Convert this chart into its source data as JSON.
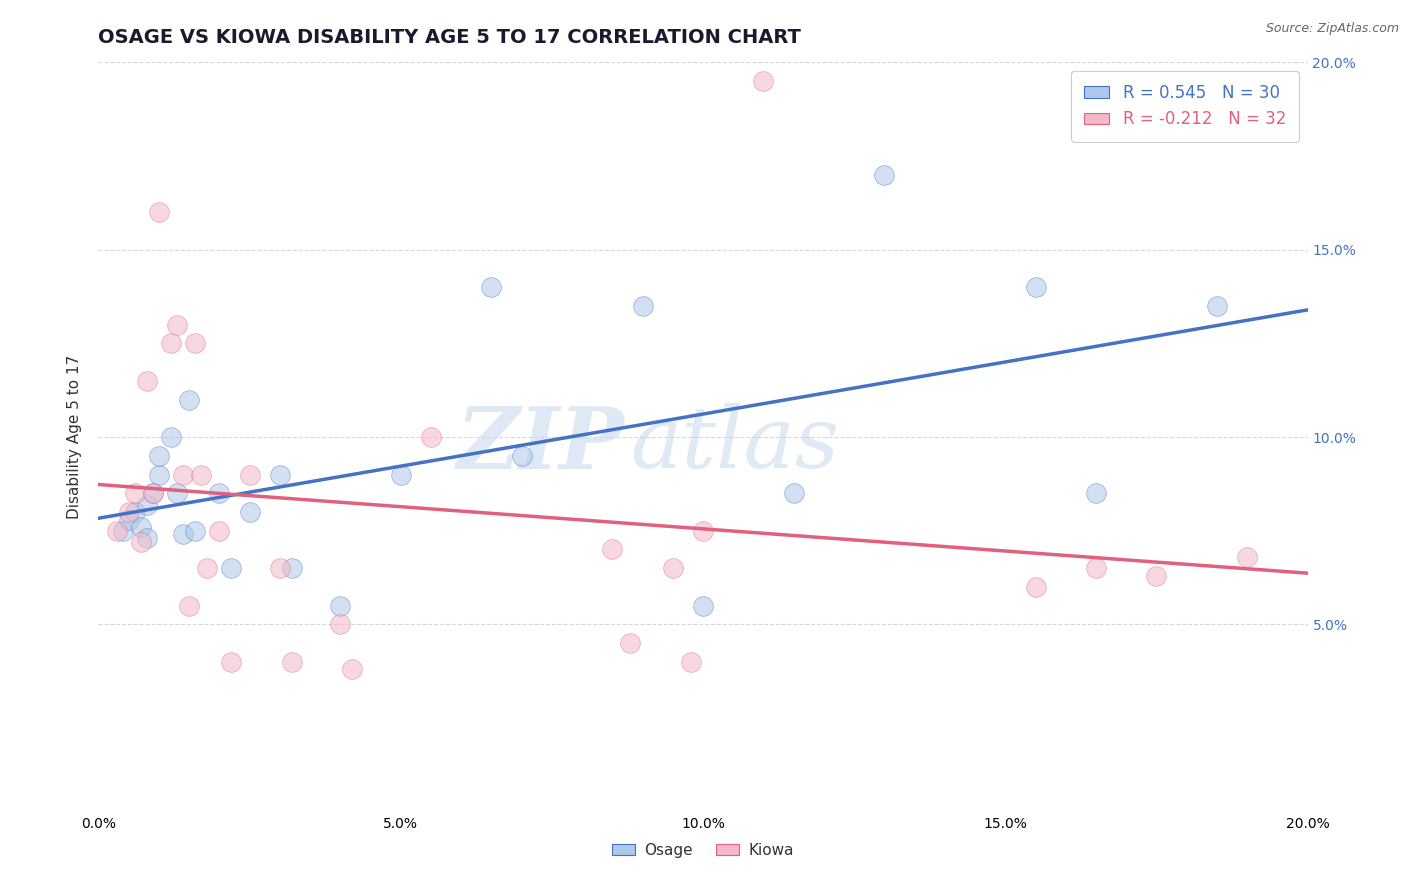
{
  "title": "OSAGE VS KIOWA DISABILITY AGE 5 TO 17 CORRELATION CHART",
  "source": "Source: ZipAtlas.com",
  "ylabel": "Disability Age 5 to 17",
  "xlim": [
    0.0,
    0.2
  ],
  "ylim": [
    0.0,
    0.2
  ],
  "xtick_vals": [
    0.0,
    0.05,
    0.1,
    0.15,
    0.2
  ],
  "ytick_vals_right": [
    0.05,
    0.1,
    0.15,
    0.2
  ],
  "ytick_labels_right": [
    "5.0%",
    "10.0%",
    "15.0%",
    "20.0%"
  ],
  "osage_R": 0.545,
  "osage_N": 30,
  "kiowa_R": -0.212,
  "kiowa_N": 32,
  "osage_color": "#adc8e8",
  "osage_line_color": "#4472c4",
  "kiowa_color": "#f4b8c8",
  "kiowa_line_color": "#e0607e",
  "right_axis_color": "#4472c4",
  "osage_x": [
    0.004,
    0.005,
    0.006,
    0.007,
    0.008,
    0.008,
    0.009,
    0.01,
    0.01,
    0.012,
    0.013,
    0.014,
    0.015,
    0.016,
    0.02,
    0.022,
    0.025,
    0.03,
    0.032,
    0.04,
    0.05,
    0.065,
    0.07,
    0.09,
    0.1,
    0.115,
    0.13,
    0.155,
    0.165,
    0.185
  ],
  "osage_y": [
    0.075,
    0.078,
    0.08,
    0.076,
    0.073,
    0.082,
    0.085,
    0.09,
    0.095,
    0.1,
    0.085,
    0.074,
    0.11,
    0.075,
    0.085,
    0.065,
    0.08,
    0.09,
    0.065,
    0.055,
    0.09,
    0.14,
    0.095,
    0.135,
    0.055,
    0.085,
    0.17,
    0.14,
    0.085,
    0.135
  ],
  "kiowa_x": [
    0.003,
    0.005,
    0.006,
    0.007,
    0.008,
    0.009,
    0.01,
    0.012,
    0.013,
    0.014,
    0.015,
    0.016,
    0.017,
    0.018,
    0.02,
    0.022,
    0.025,
    0.03,
    0.032,
    0.04,
    0.042,
    0.055,
    0.085,
    0.088,
    0.095,
    0.098,
    0.1,
    0.11,
    0.155,
    0.165,
    0.175,
    0.19
  ],
  "kiowa_y": [
    0.075,
    0.08,
    0.085,
    0.072,
    0.115,
    0.085,
    0.16,
    0.125,
    0.13,
    0.09,
    0.055,
    0.125,
    0.09,
    0.065,
    0.075,
    0.04,
    0.09,
    0.065,
    0.04,
    0.05,
    0.038,
    0.1,
    0.07,
    0.045,
    0.065,
    0.04,
    0.075,
    0.195,
    0.06,
    0.065,
    0.063,
    0.068
  ],
  "watermark_zip": "ZIP",
  "watermark_atlas": "atlas",
  "background_color": "#ffffff",
  "grid_color": "#d8d8d8",
  "marker_size": 200,
  "marker_alpha": 0.55,
  "title_fontsize": 14,
  "axis_label_fontsize": 11,
  "tick_fontsize": 10,
  "legend_fontsize": 12,
  "source_fontsize": 9
}
